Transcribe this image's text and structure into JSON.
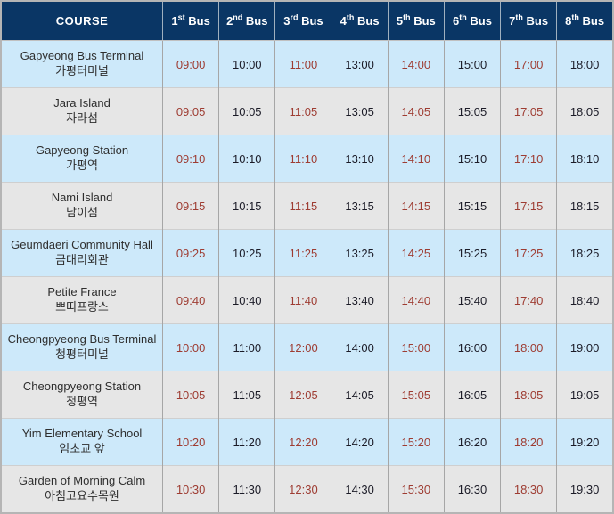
{
  "table": {
    "course_header": "COURSE",
    "bus_headers": [
      {
        "num": "1",
        "ord": "st",
        "word": "Bus"
      },
      {
        "num": "2",
        "ord": "nd",
        "word": "Bus"
      },
      {
        "num": "3",
        "ord": "rd",
        "word": "Bus"
      },
      {
        "num": "4",
        "ord": "th",
        "word": "Bus"
      },
      {
        "num": "5",
        "ord": "th",
        "word": "Bus"
      },
      {
        "num": "6",
        "ord": "th",
        "word": "Bus"
      },
      {
        "num": "7",
        "ord": "th",
        "word": "Bus"
      },
      {
        "num": "8",
        "ord": "th",
        "word": "Bus"
      }
    ],
    "rows": [
      {
        "name_en": "Gapyeong Bus Terminal",
        "name_ko": "가평터미널",
        "times": [
          "09:00",
          "10:00",
          "11:00",
          "13:00",
          "14:00",
          "15:00",
          "17:00",
          "18:00"
        ]
      },
      {
        "name_en": "Jara Island",
        "name_ko": "자라섬",
        "times": [
          "09:05",
          "10:05",
          "11:05",
          "13:05",
          "14:05",
          "15:05",
          "17:05",
          "18:05"
        ]
      },
      {
        "name_en": "Gapyeong Station",
        "name_ko": "가평역",
        "times": [
          "09:10",
          "10:10",
          "11:10",
          "13:10",
          "14:10",
          "15:10",
          "17:10",
          "18:10"
        ]
      },
      {
        "name_en": "Nami Island",
        "name_ko": "남이섬",
        "times": [
          "09:15",
          "10:15",
          "11:15",
          "13:15",
          "14:15",
          "15:15",
          "17:15",
          "18:15"
        ]
      },
      {
        "name_en": "Geumdaeri Community Hall",
        "name_ko": "금대리회관",
        "times": [
          "09:25",
          "10:25",
          "11:25",
          "13:25",
          "14:25",
          "15:25",
          "17:25",
          "18:25"
        ]
      },
      {
        "name_en": "Petite France",
        "name_ko": "쁘띠프랑스",
        "times": [
          "09:40",
          "10:40",
          "11:40",
          "13:40",
          "14:40",
          "15:40",
          "17:40",
          "18:40"
        ]
      },
      {
        "name_en": "Cheongpyeong Bus Terminal",
        "name_ko": "청평터미널",
        "times": [
          "10:00",
          "11:00",
          "12:00",
          "14:00",
          "15:00",
          "16:00",
          "18:00",
          "19:00"
        ]
      },
      {
        "name_en": "Cheongpyeong Station",
        "name_ko": "청평역",
        "times": [
          "10:05",
          "11:05",
          "12:05",
          "14:05",
          "15:05",
          "16:05",
          "18:05",
          "19:05"
        ]
      },
      {
        "name_en": "Yim Elementary School",
        "name_ko": "임초교 앞",
        "times": [
          "10:20",
          "11:20",
          "12:20",
          "14:20",
          "15:20",
          "16:20",
          "18:20",
          "19:20"
        ]
      },
      {
        "name_en": "Garden of Morning Calm",
        "name_ko": "아침고요수목원",
        "times": [
          "10:30",
          "11:30",
          "12:30",
          "14:30",
          "15:30",
          "16:30",
          "18:30",
          "19:30"
        ]
      }
    ],
    "colors": {
      "header_bg": "#0a3665",
      "header_text": "#ffffff",
      "row_blue_bg": "#cde9fa",
      "row_gray_bg": "#e6e6e6",
      "time_odd_column": "#9e3c32",
      "time_even_column": "#1b1b27",
      "course_text": "#2e2e2e",
      "grid_vertical": "#a6a6a6",
      "grid_horizontal": "#cfcfcf",
      "outer_border": "#b5b5b5"
    }
  }
}
